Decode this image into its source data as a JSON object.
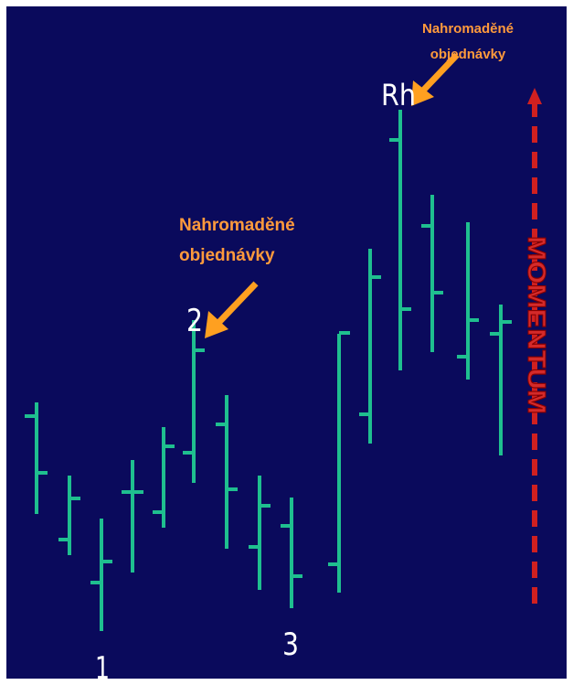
{
  "annotations": [
    {
      "lines": [
        "Nahromaděné",
        "objednávky"
      ]
    },
    {
      "lines": [
        "Nahromaděné",
        "objednávky"
      ]
    }
  ],
  "labels": [
    "1",
    "2",
    "3",
    "Rh"
  ],
  "momentum": "MOMENTUM"
}
